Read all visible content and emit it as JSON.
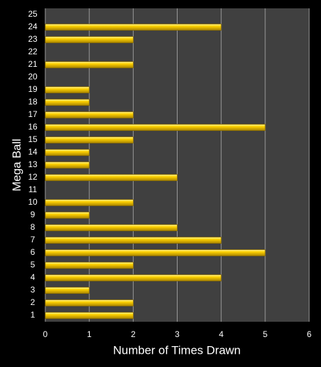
{
  "chart_data": {
    "type": "hbar",
    "categories": [
      "1",
      "2",
      "3",
      "4",
      "5",
      "6",
      "7",
      "8",
      "9",
      "10",
      "11",
      "12",
      "13",
      "14",
      "15",
      "16",
      "17",
      "18",
      "19",
      "20",
      "21",
      "22",
      "23",
      "24",
      "25"
    ],
    "values": [
      2,
      2,
      1,
      4,
      2,
      5,
      4,
      3,
      1,
      2,
      0,
      3,
      1,
      1,
      2,
      5,
      2,
      1,
      1,
      0,
      2,
      0,
      2,
      4,
      0
    ],
    "color": "#ffd200",
    "xlim": [
      0,
      6
    ],
    "xticks": [
      0,
      1,
      2,
      3,
      4,
      5,
      6
    ],
    "xlabel": "Number of Times Drawn",
    "ylabel": "Mega Ball",
    "grid": true
  }
}
